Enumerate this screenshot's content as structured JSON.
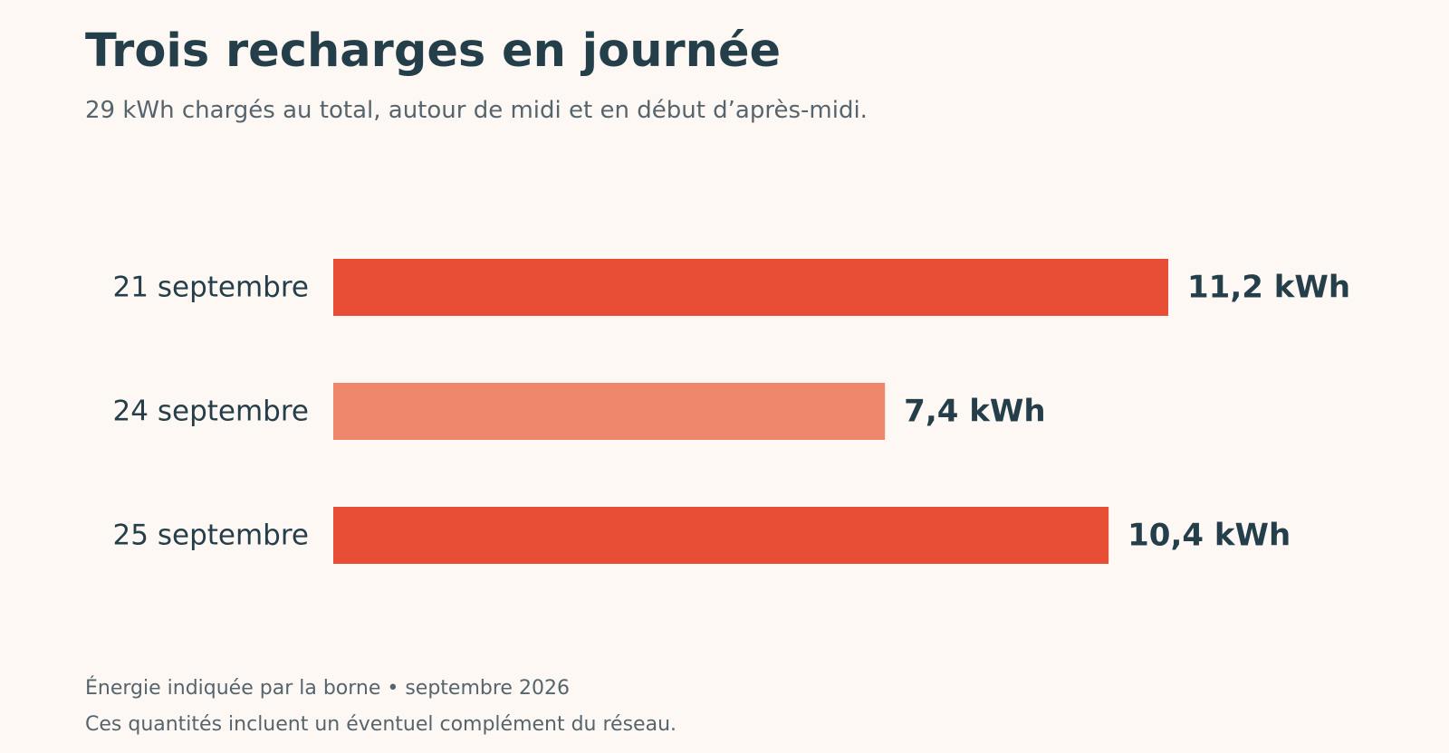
{
  "chart_data": {
    "type": "bar",
    "orientation": "horizontal",
    "title": "Trois recharges en journée",
    "subtitle": "29 kWh chargés au total, autour de midi et en début d’après-midi.",
    "categories": [
      "21 septembre",
      "24 septembre",
      "25 septembre"
    ],
    "values": [
      11.2,
      7.4,
      10.4
    ],
    "value_labels": [
      "11,2 kWh",
      "7,4 kWh",
      "10,4 kWh"
    ],
    "bar_colors": [
      "#e84e35",
      "#ee876b",
      "#e84e35"
    ],
    "xlim": [
      0,
      11.2
    ],
    "grid": false,
    "legend": "none"
  },
  "footer": {
    "source": "Énergie indiquée par la borne • septembre 2026",
    "note": "Ces quantités incluent un éventuel complément du réseau."
  },
  "colors": {
    "background": "#fdf8f4",
    "text_dark": "#243f4a",
    "text_muted": "#56656d"
  }
}
